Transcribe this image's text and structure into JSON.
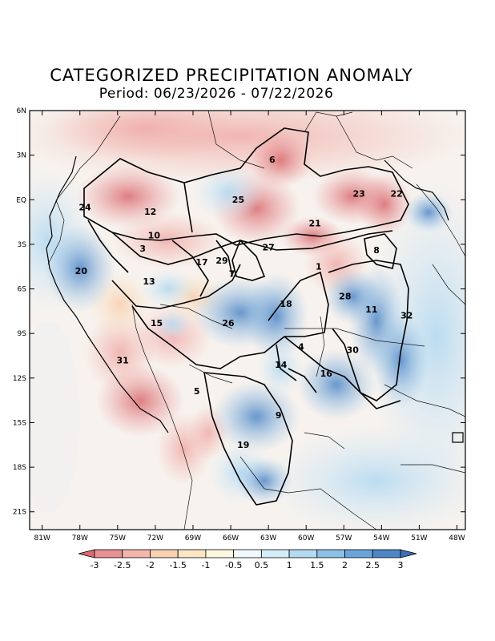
{
  "title": "CATEGORIZED PRECIPITATION ANOMALY",
  "subtitle": "Period: 06/23/2026 - 07/22/2026",
  "lat_ticks": [
    "6N",
    "3N",
    "EQ",
    "3S",
    "6S",
    "9S",
    "12S",
    "15S",
    "18S",
    "21S"
  ],
  "lon_ticks": [
    "81W",
    "78W",
    "75W",
    "72W",
    "69W",
    "66W",
    "63W",
    "60W",
    "57W",
    "54W",
    "51W",
    "48W"
  ],
  "colorbar": {
    "labels": [
      "-3",
      "-2.5",
      "-2",
      "-1.5",
      "-1",
      "-0.5",
      "0.5",
      "1",
      "1.5",
      "2",
      "2.5",
      "3"
    ],
    "colors": [
      "#d96a6e",
      "#e99295",
      "#f3b6ad",
      "#f8d0b2",
      "#fbe6c3",
      "#fdf6e0",
      "#f2f9fd",
      "#d6ecf8",
      "#b4d9f1",
      "#8cc0e7",
      "#6aa4d9",
      "#4f86c6",
      "#3d6fb3"
    ]
  },
  "regions": [
    {
      "id": "1",
      "lon": -59.0,
      "lat": -4.7
    },
    {
      "id": "4",
      "lon": -60.4,
      "lat": -10.1
    },
    {
      "id": "5",
      "lon": -68.7,
      "lat": -13.1
    },
    {
      "id": "6",
      "lon": -62.7,
      "lat": 2.5
    },
    {
      "id": "7",
      "lon": -65.9,
      "lat": -5.2
    },
    {
      "id": "8",
      "lon": -54.4,
      "lat": -3.6
    },
    {
      "id": "9",
      "lon": -62.2,
      "lat": -14.7
    },
    {
      "id": "10",
      "lon": -72.1,
      "lat": -2.6
    },
    {
      "id": "3",
      "lon": -73.0,
      "lat": -3.5
    },
    {
      "id": "11",
      "lon": -54.8,
      "lat": -7.6
    },
    {
      "id": "12",
      "lon": -72.4,
      "lat": -1.0
    },
    {
      "id": "13",
      "lon": -72.5,
      "lat": -5.7
    },
    {
      "id": "14",
      "lon": -62.0,
      "lat": -11.3
    },
    {
      "id": "15",
      "lon": -71.9,
      "lat": -8.5
    },
    {
      "id": "16",
      "lon": -58.4,
      "lat": -11.9
    },
    {
      "id": "17",
      "lon": -68.3,
      "lat": -4.4
    },
    {
      "id": "18",
      "lon": -61.6,
      "lat": -7.2
    },
    {
      "id": "19",
      "lon": -65.0,
      "lat": -16.7
    },
    {
      "id": "20",
      "lon": -77.9,
      "lat": -5.0
    },
    {
      "id": "21",
      "lon": -59.3,
      "lat": -1.8
    },
    {
      "id": "22",
      "lon": -52.8,
      "lat": 0.2
    },
    {
      "id": "23",
      "lon": -55.8,
      "lat": 0.2
    },
    {
      "id": "24",
      "lon": -77.6,
      "lat": -0.7
    },
    {
      "id": "25",
      "lon": -65.4,
      "lat": -0.2
    },
    {
      "id": "26",
      "lon": -66.2,
      "lat": -8.5
    },
    {
      "id": "27",
      "lon": -63.0,
      "lat": -3.4
    },
    {
      "id": "28",
      "lon": -56.9,
      "lat": -6.7
    },
    {
      "id": "29",
      "lon": -66.7,
      "lat": -4.3
    },
    {
      "id": "30",
      "lon": -56.3,
      "lat": -10.3
    },
    {
      "id": "31",
      "lon": -74.6,
      "lat": -11.0
    },
    {
      "id": "32",
      "lon": -52.0,
      "lat": -8.0
    }
  ]
}
